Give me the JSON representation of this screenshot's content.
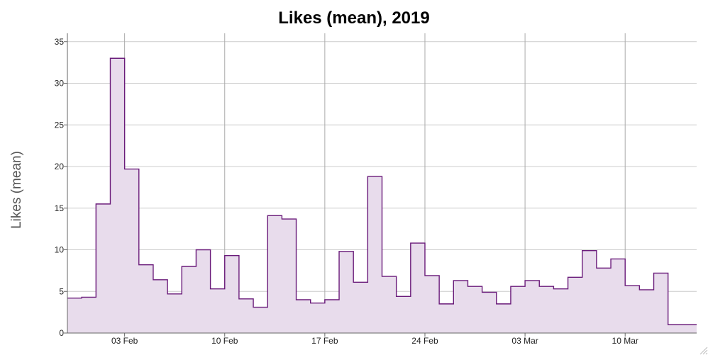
{
  "chart_data": {
    "type": "area",
    "step": true,
    "title": "Likes (mean), 2019",
    "xlabel": "",
    "ylabel": "Likes (mean)",
    "ylim": [
      0,
      36
    ],
    "yticks": [
      0,
      5,
      10,
      15,
      20,
      25,
      30,
      35
    ],
    "xlim": [
      "2019-01-30",
      "2019-03-15"
    ],
    "xticks": [
      {
        "date": "2019-02-03",
        "label": "03 Feb"
      },
      {
        "date": "2019-02-10",
        "label": "10 Feb"
      },
      {
        "date": "2019-02-17",
        "label": "17 Feb"
      },
      {
        "date": "2019-02-24",
        "label": "24 Feb"
      },
      {
        "date": "2019-03-03",
        "label": "03 Mar"
      },
      {
        "date": "2019-03-10",
        "label": "10 Mar"
      }
    ],
    "grid": true,
    "colors": {
      "line": "#6a1b7a",
      "fill": "#e8dcec",
      "grid": "#cccccc",
      "vgrid": "#aaaaaa"
    },
    "series": [
      {
        "x": [
          "2019-01-30",
          "2019-01-31",
          "2019-02-01",
          "2019-02-02",
          "2019-02-03",
          "2019-02-04",
          "2019-02-05",
          "2019-02-06",
          "2019-02-07",
          "2019-02-08",
          "2019-02-09",
          "2019-02-10",
          "2019-02-11",
          "2019-02-12",
          "2019-02-13",
          "2019-02-14",
          "2019-02-15",
          "2019-02-16",
          "2019-02-17",
          "2019-02-18",
          "2019-02-19",
          "2019-02-20",
          "2019-02-21",
          "2019-02-22",
          "2019-02-23",
          "2019-02-24",
          "2019-02-25",
          "2019-02-26",
          "2019-02-27",
          "2019-02-28",
          "2019-03-01",
          "2019-03-02",
          "2019-03-03",
          "2019-03-04",
          "2019-03-05",
          "2019-03-06",
          "2019-03-07",
          "2019-03-08",
          "2019-03-09",
          "2019-03-10",
          "2019-03-11",
          "2019-03-12",
          "2019-03-13",
          "2019-03-14"
        ],
        "y": [
          4.2,
          4.3,
          15.5,
          33.0,
          19.7,
          8.2,
          6.4,
          4.7,
          8.0,
          10.0,
          5.3,
          9.3,
          4.1,
          3.1,
          14.1,
          13.7,
          4.0,
          3.6,
          4.0,
          9.8,
          6.1,
          18.8,
          6.8,
          4.4,
          10.8,
          6.9,
          3.5,
          6.3,
          5.6,
          4.9,
          3.5,
          5.6,
          6.3,
          5.6,
          5.3,
          6.7,
          9.9,
          7.8,
          8.9,
          5.7,
          5.2,
          7.2,
          1.0,
          1.0
        ]
      }
    ]
  }
}
